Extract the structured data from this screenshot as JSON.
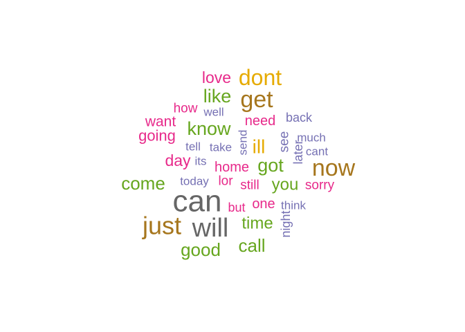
{
  "palette": {
    "pink": "#e7298a",
    "gold": "#e6ab02",
    "olive": "#a6761d",
    "green": "#66a61e",
    "purple": "#7570b3",
    "gray": "#666666"
  },
  "chart_data": {
    "type": "wordcloud",
    "words": [
      {
        "text": "can",
        "weight": 44,
        "color": "gray"
      },
      {
        "text": "will",
        "weight": 38,
        "color": "gray"
      },
      {
        "text": "just",
        "weight": 36,
        "color": "olive"
      },
      {
        "text": "now",
        "weight": 34,
        "color": "olive"
      },
      {
        "text": "get",
        "weight": 34,
        "color": "olive"
      },
      {
        "text": "dont",
        "weight": 32,
        "color": "gold"
      },
      {
        "text": "come",
        "weight": 26,
        "color": "green"
      },
      {
        "text": "good",
        "weight": 26,
        "color": "green"
      },
      {
        "text": "know",
        "weight": 27,
        "color": "green"
      },
      {
        "text": "like",
        "weight": 27,
        "color": "green"
      },
      {
        "text": "call",
        "weight": 26,
        "color": "green"
      },
      {
        "text": "got",
        "weight": 27,
        "color": "green"
      },
      {
        "text": "ill",
        "weight": 28,
        "color": "gold"
      },
      {
        "text": "time",
        "weight": 24,
        "color": "green"
      },
      {
        "text": "you",
        "weight": 24,
        "color": "green"
      },
      {
        "text": "love",
        "weight": 23,
        "color": "pink"
      },
      {
        "text": "day",
        "weight": 23,
        "color": "pink"
      },
      {
        "text": "going",
        "weight": 22,
        "color": "pink"
      },
      {
        "text": "want",
        "weight": 21,
        "color": "pink"
      },
      {
        "text": "need",
        "weight": 20,
        "color": "pink"
      },
      {
        "text": "home",
        "weight": 20,
        "color": "pink"
      },
      {
        "text": "one",
        "weight": 20,
        "color": "pink"
      },
      {
        "text": "sorry",
        "weight": 19,
        "color": "pink"
      },
      {
        "text": "lor",
        "weight": 19,
        "color": "pink"
      },
      {
        "text": "still",
        "weight": 19,
        "color": "pink"
      },
      {
        "text": "how",
        "weight": 19,
        "color": "pink"
      },
      {
        "text": "but",
        "weight": 18,
        "color": "pink"
      },
      {
        "text": "back",
        "weight": 18,
        "color": "purple"
      },
      {
        "text": "well",
        "weight": 17,
        "color": "purple"
      },
      {
        "text": "take",
        "weight": 17,
        "color": "purple"
      },
      {
        "text": "tell",
        "weight": 17,
        "color": "purple"
      },
      {
        "text": "its",
        "weight": 17,
        "color": "purple"
      },
      {
        "text": "today",
        "weight": 17,
        "color": "purple"
      },
      {
        "text": "much",
        "weight": 17,
        "color": "purple"
      },
      {
        "text": "cant",
        "weight": 17,
        "color": "purple"
      },
      {
        "text": "think",
        "weight": 17,
        "color": "purple"
      },
      {
        "text": "see",
        "weight": 19,
        "color": "purple"
      },
      {
        "text": "send",
        "weight": 17,
        "color": "purple"
      },
      {
        "text": "later",
        "weight": 18,
        "color": "purple"
      },
      {
        "text": "night",
        "weight": 18,
        "color": "purple"
      }
    ]
  }
}
